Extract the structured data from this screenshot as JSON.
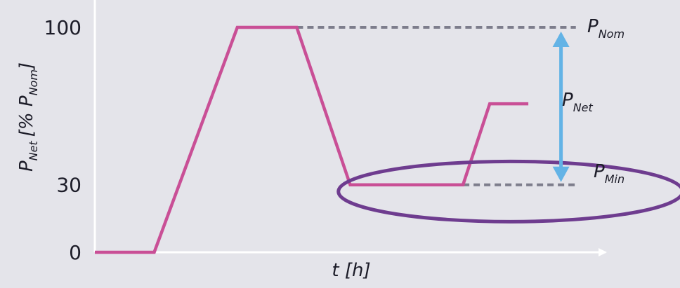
{
  "chart_data": {
    "type": "line",
    "title": "",
    "xlabel": "t [h]",
    "ylabel": {
      "main": "P",
      "sub": "Net",
      "bracket": "[% P",
      "bracket_sub": "Nom",
      "bracket_close": "]"
    },
    "ylim": [
      0,
      100
    ],
    "y_ticks": [
      {
        "value": 0,
        "label": "0"
      },
      {
        "value": 30,
        "label": "30"
      },
      {
        "value": 100,
        "label": "100"
      }
    ],
    "grid": false,
    "series": [
      {
        "name": "P_Net",
        "color": "#c94f96",
        "points": [
          {
            "t": 0,
            "v": 0
          },
          {
            "t": 1,
            "v": 0
          },
          {
            "t": 2.4,
            "v": 100
          },
          {
            "t": 3.4,
            "v": 100
          },
          {
            "t": 4.3,
            "v": 30
          },
          {
            "t": 6.2,
            "v": 30
          },
          {
            "t": 6.65,
            "v": 66
          },
          {
            "t": 7.3,
            "v": 66
          }
        ]
      }
    ],
    "x_range": [
      0,
      8.6
    ],
    "reference_lines": [
      {
        "name": "P_Nom",
        "value": 100,
        "t_start": 3.4,
        "t_end": 8.1,
        "color": "#7d7d8c"
      },
      {
        "name": "P_Min",
        "value": 30,
        "t_start": 6.2,
        "t_end": 8.1,
        "color": "#7d7d8c"
      }
    ],
    "annotations": {
      "p_nom": {
        "main": "P",
        "sub": "Nom"
      },
      "p_min": {
        "main": "P",
        "sub": "Min"
      },
      "p_net": {
        "main": "P",
        "sub": "Net"
      }
    },
    "range_arrow": {
      "t": 7.85,
      "from": 30,
      "to": 100,
      "color": "#63b3e6"
    },
    "highlight_ellipse": {
      "t_center": 7.0,
      "v_center": 27,
      "color": "#6e3c8f"
    },
    "axis_color": "#ffffff"
  }
}
